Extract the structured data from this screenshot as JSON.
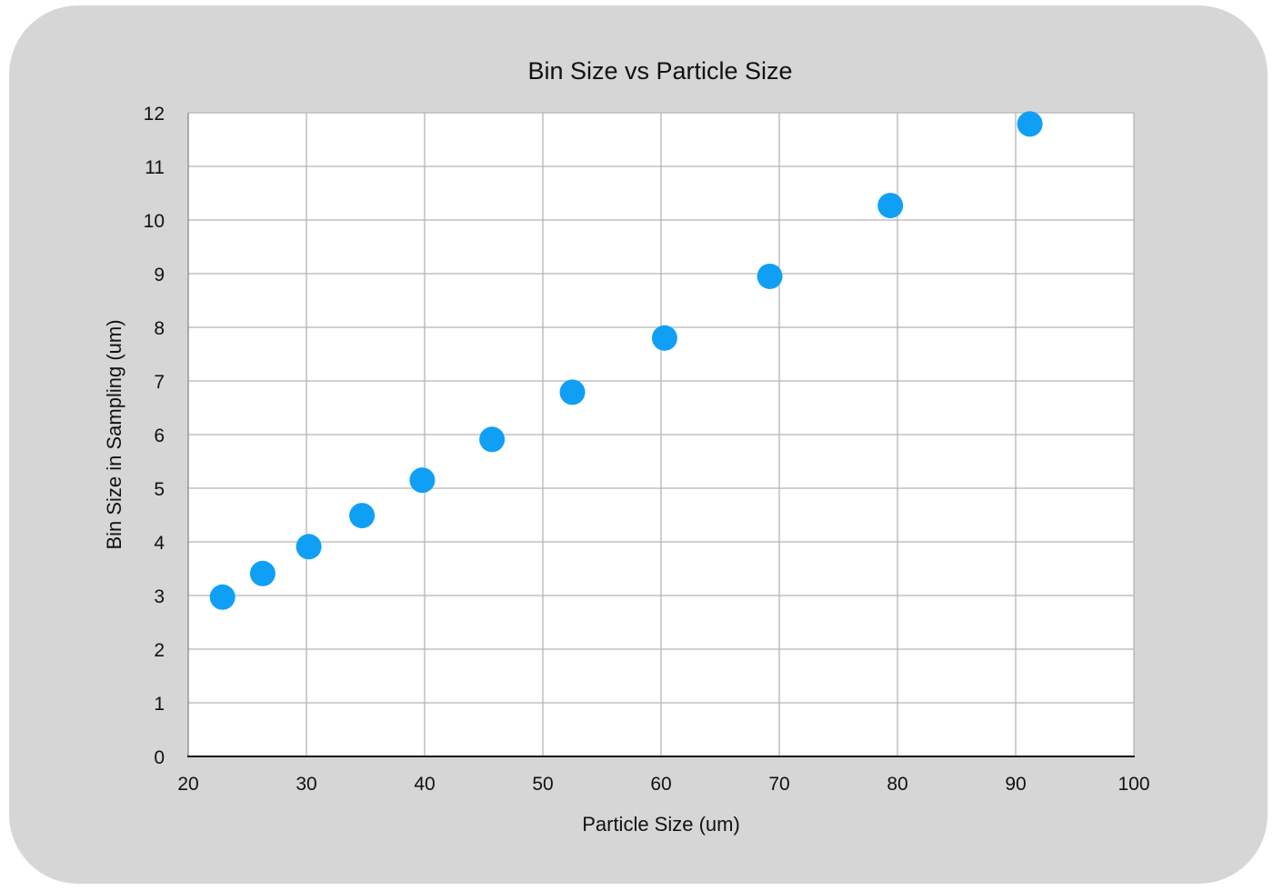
{
  "chart_data": {
    "type": "scatter",
    "title": "Bin Size vs Particle Size",
    "xlabel": "Particle Size (um)",
    "ylabel": "Bin Size in Sampling (um)",
    "xlim": [
      20,
      100
    ],
    "ylim": [
      0,
      12
    ],
    "x_ticks": [
      20,
      30,
      40,
      50,
      60,
      70,
      80,
      90,
      100
    ],
    "y_ticks": [
      0,
      1,
      2,
      3,
      4,
      5,
      6,
      7,
      8,
      9,
      10,
      11,
      12
    ],
    "grid": true,
    "series": [
      {
        "color": "#0fa0f5",
        "points": [
          {
            "x": 22.9,
            "y": 2.97
          },
          {
            "x": 26.3,
            "y": 3.41
          },
          {
            "x": 30.2,
            "y": 3.91
          },
          {
            "x": 34.7,
            "y": 4.49
          },
          {
            "x": 39.8,
            "y": 5.15
          },
          {
            "x": 45.7,
            "y": 5.91
          },
          {
            "x": 52.5,
            "y": 6.79
          },
          {
            "x": 60.3,
            "y": 7.8
          },
          {
            "x": 69.2,
            "y": 8.95
          },
          {
            "x": 79.4,
            "y": 10.27
          },
          {
            "x": 91.2,
            "y": 11.79
          }
        ]
      }
    ]
  }
}
